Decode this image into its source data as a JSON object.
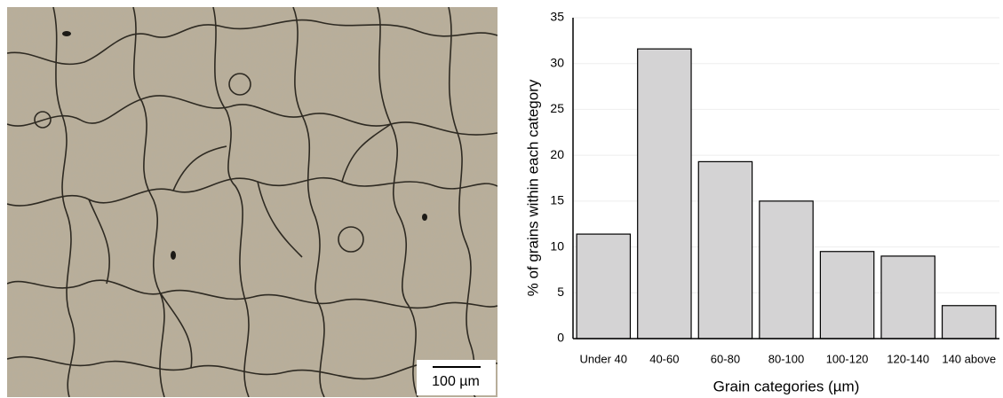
{
  "image": {
    "scale_bar_label": "100 µm"
  },
  "chart_data": {
    "type": "bar",
    "ylabel": "% of grains within each category",
    "xlabel": "Grain categories (µm)",
    "categories": [
      "Under 40",
      "40-60",
      "60-80",
      "80-100",
      "100-120",
      "120-140",
      "140 above"
    ],
    "values": [
      11.4,
      31.6,
      19.3,
      15.0,
      9.5,
      9.0,
      3.6
    ],
    "color": "#d4d3d4",
    "ylim": [
      0,
      35
    ],
    "yticks": [
      0,
      5,
      10,
      15,
      20,
      25,
      30,
      35
    ],
    "grid": true
  }
}
